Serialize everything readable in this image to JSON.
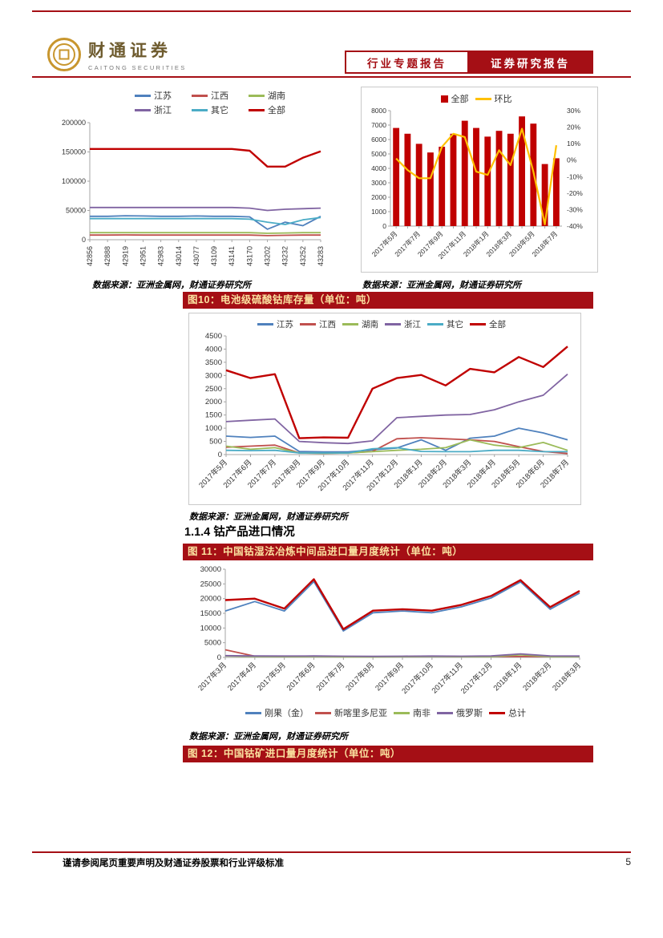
{
  "header": {
    "logo_cn": "财通证券",
    "logo_en": "CAITONG SECURITIES",
    "report_type": "行业专题报告",
    "report_category": "证券研究报告"
  },
  "section_heading": "1.1.4 钴产品进口情况",
  "source_note": "数据来源：亚洲金属网，财通证券研究所",
  "figure_titles": {
    "fig10": "图10：电池级硫酸钴库存量（单位：吨）",
    "fig11": "图 11：中国钴湿法冶炼中间品进口量月度统计（单位：吨）",
    "fig12": "图 12：中国钴矿进口量月度统计（单位：吨）"
  },
  "footer": {
    "note": "谨请参阅尾页重要声明及财通证券股票和行业评级标准",
    "page_number": "5"
  },
  "colors": {
    "brand_red": "#A50F15",
    "figure_title_text": "#FBE2A0",
    "accent_line_red": "#C00000",
    "mom_yellow": "#FFC000"
  },
  "chart_data": [
    {
      "id": "c1",
      "type": "line",
      "title": "",
      "categories": [
        "42856",
        "42888",
        "42919",
        "42951",
        "42983",
        "43014",
        "43077",
        "43109",
        "43141",
        "43170",
        "43202",
        "43232",
        "43252",
        "43283"
      ],
      "ylim": [
        0,
        200000
      ],
      "yticks": [
        0,
        50000,
        100000,
        150000,
        200000
      ],
      "series": [
        {
          "name": "江苏",
          "color": "#4F81BD",
          "values": [
            40000,
            40000,
            41000,
            40500,
            40000,
            40000,
            40500,
            40000,
            40000,
            39000,
            18000,
            30000,
            24000,
            40000
          ]
        },
        {
          "name": "江西",
          "color": "#C0504D",
          "values": [
            8000,
            8000,
            8200,
            8000,
            8000,
            8000,
            8000,
            8000,
            8000,
            8000,
            7000,
            7500,
            8000,
            8000
          ]
        },
        {
          "name": "湖南",
          "color": "#9BBB59",
          "values": [
            12000,
            12000,
            12000,
            12000,
            12000,
            12000,
            12000,
            12000,
            12000,
            12000,
            11000,
            11500,
            12000,
            12000
          ]
        },
        {
          "name": "浙江",
          "color": "#8064A2",
          "values": [
            55000,
            55000,
            55000,
            55000,
            55000,
            55000,
            55000,
            55000,
            55000,
            54000,
            50000,
            52000,
            53000,
            54000
          ]
        },
        {
          "name": "其它",
          "color": "#4BACC6",
          "values": [
            36000,
            36000,
            36000,
            36000,
            36000,
            36000,
            36000,
            36000,
            36000,
            35000,
            30000,
            26000,
            34000,
            38000
          ]
        },
        {
          "name": "全部",
          "color": "#C00000",
          "values": [
            155000,
            155000,
            155000,
            155000,
            155000,
            155000,
            155000,
            155000,
            155000,
            152000,
            125000,
            125000,
            140000,
            151000
          ]
        }
      ]
    },
    {
      "id": "c2",
      "type": "bar-line",
      "title": "",
      "categories": [
        "2017年5月",
        "2017年6月",
        "2017年7月",
        "2017年8月",
        "2017年9月",
        "2017年10月",
        "2017年11月",
        "2017年12月",
        "2018年1月",
        "2018年2月",
        "2018年3月",
        "2018年4月",
        "2018年5月",
        "2018年6月",
        "2018年7月"
      ],
      "ylim": [
        0,
        8000
      ],
      "yticks": [
        0,
        1000,
        2000,
        3000,
        4000,
        5000,
        6000,
        7000,
        8000
      ],
      "y2lim": [
        -40,
        30
      ],
      "y2ticks": [
        30,
        20,
        10,
        0,
        -10,
        -20,
        -30,
        -40
      ],
      "bar_series": {
        "name": "全部",
        "color": "#C00000",
        "values": [
          6800,
          6400,
          5700,
          5100,
          5500,
          6400,
          7300,
          6800,
          6200,
          6600,
          6400,
          7600,
          7100,
          4300,
          4700
        ]
      },
      "line_series": {
        "name": "环比",
        "color": "#FFC000",
        "axis": "right",
        "values": [
          1,
          -6,
          -11,
          -11,
          8,
          16,
          14,
          -7,
          -9,
          6,
          -3,
          19,
          -7,
          -39,
          9
        ]
      }
    },
    {
      "id": "c10",
      "type": "line",
      "title": "图10：电池级硫酸钴库存量（单位：吨）",
      "categories": [
        "2017年5月",
        "2017年6月",
        "2017年7月",
        "2017年8月",
        "2017年9月",
        "2017年10月",
        "2017年11月",
        "2017年12月",
        "2018年1月",
        "2018年2月",
        "2018年3月",
        "2018年4月",
        "2018年5月",
        "2018年6月",
        "2018年7月"
      ],
      "ylim": [
        0,
        4500
      ],
      "yticks": [
        0,
        500,
        1000,
        1500,
        2000,
        2500,
        3000,
        3500,
        4000,
        4500
      ],
      "series": [
        {
          "name": "江苏",
          "color": "#4F81BD",
          "values": [
            700,
            650,
            700,
            120,
            100,
            100,
            180,
            250,
            560,
            160,
            620,
            700,
            1000,
            820,
            560
          ]
        },
        {
          "name": "江西",
          "color": "#C0504D",
          "values": [
            280,
            320,
            360,
            60,
            50,
            60,
            120,
            600,
            640,
            600,
            560,
            500,
            300,
            120,
            40
          ]
        },
        {
          "name": "湖南",
          "color": "#9BBB59",
          "values": [
            320,
            200,
            260,
            60,
            50,
            60,
            110,
            160,
            200,
            260,
            560,
            360,
            260,
            460,
            160
          ]
        },
        {
          "name": "浙江",
          "color": "#8064A2",
          "values": [
            1250,
            1300,
            1350,
            500,
            450,
            420,
            520,
            1400,
            1450,
            1500,
            1520,
            1700,
            2000,
            2250,
            3050
          ]
        },
        {
          "name": "其它",
          "color": "#4BACC6",
          "values": [
            160,
            150,
            160,
            60,
            60,
            60,
            220,
            260,
            120,
            110,
            110,
            160,
            160,
            110,
            110
          ]
        },
        {
          "name": "全部",
          "color": "#C00000",
          "values": [
            3200,
            2900,
            3050,
            620,
            650,
            640,
            2500,
            2900,
            3020,
            2620,
            3250,
            3120,
            3700,
            3320,
            4100
          ]
        }
      ]
    },
    {
      "id": "c11",
      "type": "line",
      "title": "图 11：中国钴湿法冶炼中间品进口量月度统计（单位：吨）",
      "categories": [
        "2017年3月",
        "2017年4月",
        "2017年5月",
        "2017年6月",
        "2017年7月",
        "2017年8月",
        "2017年9月",
        "2017年10月",
        "2017年11月",
        "2017年12月",
        "2018年1月",
        "2018年2月",
        "2018年3月"
      ],
      "ylim": [
        0,
        30000
      ],
      "yticks": [
        0,
        5000,
        10000,
        15000,
        20000,
        25000,
        30000
      ],
      "series": [
        {
          "name": "刚果（金）",
          "color": "#4F81BD",
          "values": [
            15800,
            19000,
            15800,
            25800,
            9000,
            15200,
            15800,
            15200,
            17200,
            20200,
            25700,
            16400,
            21900
          ]
        },
        {
          "name": "新喀里多尼亚",
          "color": "#C0504D",
          "values": [
            2600,
            400,
            350,
            400,
            300,
            250,
            300,
            400,
            300,
            350,
            300,
            300,
            350
          ]
        },
        {
          "name": "南非",
          "color": "#9BBB59",
          "values": [
            500,
            300,
            250,
            300,
            200,
            150,
            250,
            300,
            250,
            250,
            900,
            250,
            250
          ]
        },
        {
          "name": "俄罗斯",
          "color": "#8064A2",
          "values": [
            600,
            500,
            450,
            500,
            400,
            350,
            400,
            450,
            400,
            500,
            1200,
            500,
            450
          ]
        },
        {
          "name": "总计",
          "color": "#C00000",
          "values": [
            19500,
            20000,
            16600,
            26600,
            9600,
            15900,
            16400,
            15900,
            17900,
            20900,
            26300,
            17100,
            22600
          ]
        }
      ]
    }
  ]
}
